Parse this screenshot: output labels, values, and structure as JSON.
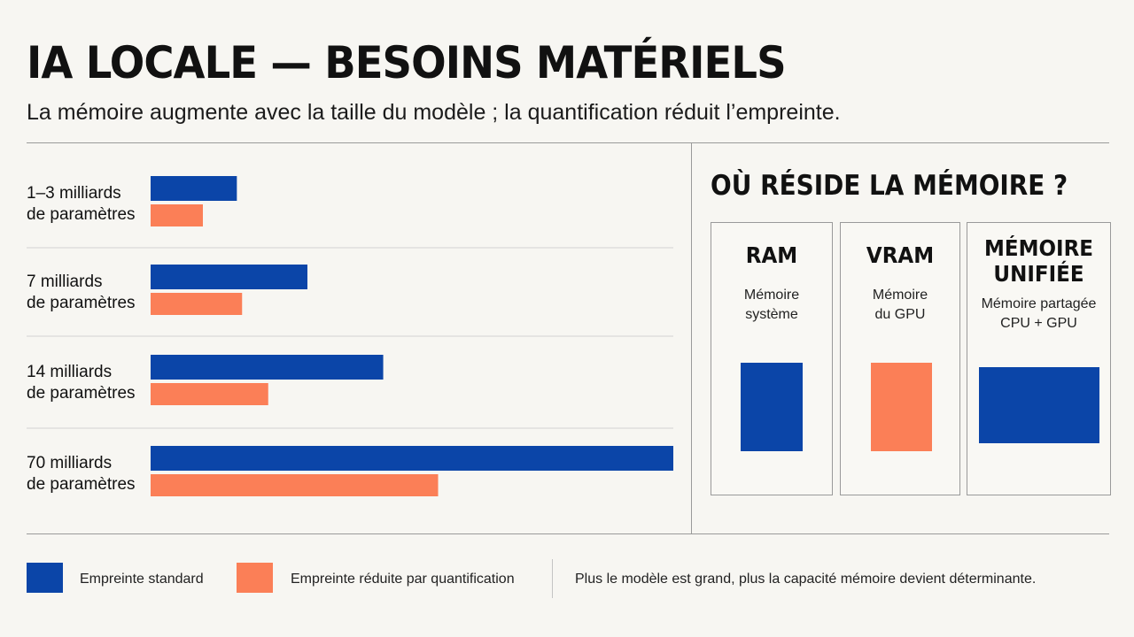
{
  "title": "IA LOCALE — BESOINS MATÉRIELS",
  "subtitle": "La mémoire augmente avec la taille du modèle ; la quantification réduit l’empreinte.",
  "colors": {
    "standard": "#0b45a8",
    "quantized": "#fb7f57",
    "rule": "#9a9a9a"
  },
  "chart_data": {
    "type": "bar",
    "orientation": "horizontal",
    "categories": [
      [
        "1–3 milliards",
        "de paramètres"
      ],
      [
        "7 milliards",
        "de paramètres"
      ],
      [
        "14 milliards",
        "de paramètres"
      ],
      [
        "70 milliards",
        "de paramètres"
      ]
    ],
    "series": [
      {
        "name": "Empreinte standard",
        "values": [
          16.5,
          30,
          44.5,
          100
        ]
      },
      {
        "name": "Empreinte réduite par quantification",
        "values": [
          10,
          17.5,
          22.5,
          55
        ]
      }
    ],
    "value_axis_shown": false,
    "xlim": [
      0,
      100
    ]
  },
  "panel": {
    "title": "OÙ RÉSIDE LA MÉMOIRE ?",
    "boxes": [
      {
        "name": "RAM",
        "desc": "Mémoire\nsystème",
        "color": "standard"
      },
      {
        "name": "VRAM",
        "desc": "Mémoire\ndu GPU",
        "color": "quantized"
      },
      {
        "name": "MÉMOIRE\nUNIFIÉE",
        "desc": "Mémoire partagée\nCPU + GPU",
        "color": "standard"
      }
    ]
  },
  "legend": {
    "standard": "Empreinte standard",
    "quantized": "Empreinte réduite par quantification"
  },
  "note": "Plus le modèle est grand, plus la capacité mémoire devient déterminante."
}
